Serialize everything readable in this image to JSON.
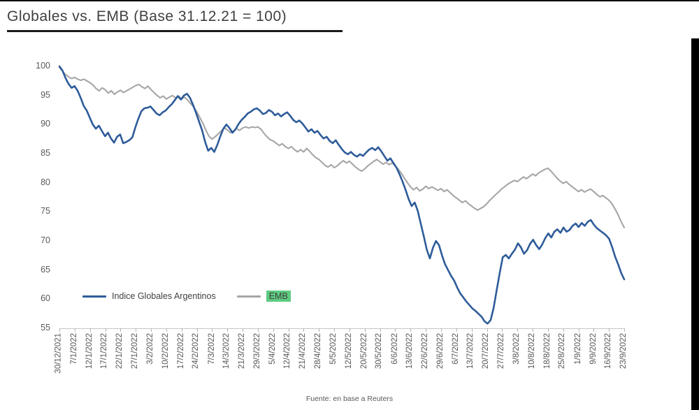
{
  "page": {
    "title": "Globales vs. EMB (Base 31.12.21 = 100)",
    "source_note": "Fuente: en base a Reuters"
  },
  "colors": {
    "globales_line": "#2e5c9a",
    "emb_line": "#a6a6a6",
    "emb_highlight": "#5fcb80",
    "axis_text": "#595959",
    "title_text": "#3f3f3f"
  },
  "chart_data": {
    "type": "line",
    "title": "Globales vs. EMB (Base 31.12.21 = 100)",
    "ylim": [
      55,
      100
    ],
    "y_ticks": [
      100,
      95,
      90,
      85,
      80,
      75,
      70,
      65,
      60,
      55
    ],
    "grid": false,
    "legend_position": "inside-bottom-left",
    "source_note": "Fuente: en base a Reuters",
    "x_tick_labels": [
      "30/12/2021",
      "7/1/2022",
      "12/1/2022",
      "17/1/2022",
      "22/1/2022",
      "27/1/2022",
      "3/2/2022",
      "10/2/2022",
      "17/2/2022",
      "24/2/2022",
      "7/3/2022",
      "14/3/2022",
      "21/3/2022",
      "29/3/2022",
      "5/4/2022",
      "12/4/2022",
      "21/4/2022",
      "28/4/2022",
      "5/5/2022",
      "12/5/2022",
      "20/5/2022",
      "30/5/2022",
      "6/6/2022",
      "13/6/2022",
      "22/6/2022",
      "29/6/2022",
      "6/7/2022",
      "13/7/2022",
      "20/7/2022",
      "27/7/2022",
      "3/8/2022",
      "10/8/2022",
      "18/8/2022",
      "25/8/2022",
      "1/9/2022",
      "9/9/2022",
      "16/9/2022",
      "23/9/2022"
    ],
    "series": [
      {
        "name": "Indice Globales Argentinos",
        "color": "#2e5c9a",
        "stroke_width": 2.6,
        "values": [
          100,
          99.3,
          98.0,
          97.0,
          96.3,
          96.6,
          95.8,
          94.6,
          93.2,
          92.4,
          91.2,
          90.0,
          89.3,
          89.8,
          88.9,
          88.0,
          88.6,
          87.6,
          86.9,
          87.9,
          88.3,
          86.8,
          87.0,
          87.3,
          87.8,
          89.5,
          91.0,
          92.3,
          92.8,
          92.9,
          93.1,
          92.5,
          91.9,
          91.6,
          92.1,
          92.4,
          93.0,
          93.5,
          94.2,
          94.9,
          94.3,
          95.0,
          95.3,
          94.6,
          93.4,
          92.0,
          90.5,
          89.0,
          87.0,
          85.5,
          86.0,
          85.3,
          86.5,
          88.0,
          89.3,
          90.0,
          89.4,
          88.6,
          89.2,
          90.1,
          90.8,
          91.3,
          91.9,
          92.2,
          92.6,
          92.8,
          92.4,
          91.8,
          92.0,
          92.5,
          92.2,
          91.6,
          91.9,
          91.4,
          91.8,
          92.1,
          91.5,
          90.8,
          90.4,
          90.7,
          90.2,
          89.5,
          88.8,
          89.2,
          88.6,
          88.9,
          88.2,
          87.6,
          87.9,
          87.2,
          86.8,
          87.3,
          86.5,
          85.8,
          85.2,
          84.9,
          85.3,
          84.8,
          84.5,
          84.9,
          84.6,
          85.2,
          85.7,
          86.0,
          85.6,
          86.1,
          85.4,
          84.6,
          83.8,
          84.2,
          83.4,
          82.6,
          81.5,
          80.2,
          78.8,
          77.2,
          76.0,
          76.6,
          75.2,
          73.0,
          70.8,
          68.5,
          67.0,
          68.8,
          70.0,
          69.3,
          67.5,
          66.0,
          65.0,
          64.0,
          63.2,
          62.0,
          61.0,
          60.3,
          59.6,
          59.0,
          58.4,
          58.0,
          57.5,
          57.0,
          56.2,
          55.8,
          56.4,
          58.5,
          61.5,
          64.5,
          67.2,
          67.6,
          67.0,
          67.8,
          68.5,
          69.6,
          68.9,
          67.8,
          68.4,
          69.5,
          70.2,
          69.3,
          68.6,
          69.4,
          70.5,
          71.3,
          70.6,
          71.6,
          72.0,
          71.4,
          72.3,
          71.6,
          71.9,
          72.6,
          73.0,
          72.4,
          73.1,
          72.6,
          73.3,
          73.6,
          72.8,
          72.2,
          71.8,
          71.4,
          71.0,
          70.4,
          69.0,
          67.3,
          66.0,
          64.5,
          63.4
        ]
      },
      {
        "name": "EMB",
        "color": "#a6a6a6",
        "stroke_width": 2.1,
        "values": [
          99.8,
          99.2,
          98.6,
          98.2,
          97.9,
          98.1,
          97.8,
          97.6,
          97.8,
          97.5,
          97.2,
          96.8,
          96.2,
          95.8,
          96.3,
          96.0,
          95.4,
          95.8,
          95.2,
          95.6,
          95.9,
          95.5,
          95.8,
          96.1,
          96.4,
          96.7,
          96.9,
          96.5,
          96.2,
          96.6,
          96.0,
          95.5,
          95.0,
          94.6,
          94.9,
          94.4,
          94.7,
          95.0,
          94.6,
          94.9,
          94.4,
          94.7,
          94.2,
          93.6,
          93.0,
          92.2,
          91.2,
          90.2,
          89.0,
          88.0,
          87.5,
          87.9,
          88.4,
          88.9,
          89.4,
          89.1,
          88.6,
          88.9,
          89.3,
          89.0,
          89.4,
          89.6,
          89.4,
          89.6,
          89.5,
          89.6,
          89.2,
          88.5,
          87.9,
          87.4,
          87.2,
          86.8,
          86.4,
          86.7,
          86.2,
          85.9,
          86.2,
          85.7,
          85.3,
          85.7,
          85.3,
          85.9,
          85.4,
          84.8,
          84.3,
          84.0,
          83.5,
          83.0,
          82.7,
          83.1,
          82.6,
          82.9,
          83.4,
          83.8,
          83.4,
          83.7,
          83.2,
          82.7,
          82.3,
          82.0,
          82.4,
          82.9,
          83.3,
          83.7,
          84.0,
          83.6,
          83.2,
          83.5,
          83.1,
          83.4,
          82.9,
          82.3,
          81.6,
          80.8,
          80.0,
          79.3,
          78.8,
          79.2,
          78.6,
          78.9,
          79.4,
          79.0,
          79.3,
          79.0,
          78.7,
          79.0,
          78.5,
          78.8,
          78.3,
          77.8,
          77.4,
          77.0,
          76.6,
          76.9,
          76.4,
          76.0,
          75.6,
          75.3,
          75.6,
          75.9,
          76.4,
          77.0,
          77.5,
          78.0,
          78.5,
          79.0,
          79.4,
          79.8,
          80.1,
          80.4,
          80.2,
          80.6,
          81.0,
          80.7,
          81.1,
          81.5,
          81.2,
          81.7,
          82.0,
          82.3,
          82.5,
          82.0,
          81.4,
          80.8,
          80.3,
          79.9,
          80.2,
          79.7,
          79.3,
          78.9,
          78.5,
          78.8,
          78.4,
          78.7,
          78.9,
          78.5,
          78.0,
          77.6,
          77.8,
          77.4,
          77.0,
          76.4,
          75.5,
          74.5,
          73.3,
          72.3
        ]
      }
    ]
  }
}
